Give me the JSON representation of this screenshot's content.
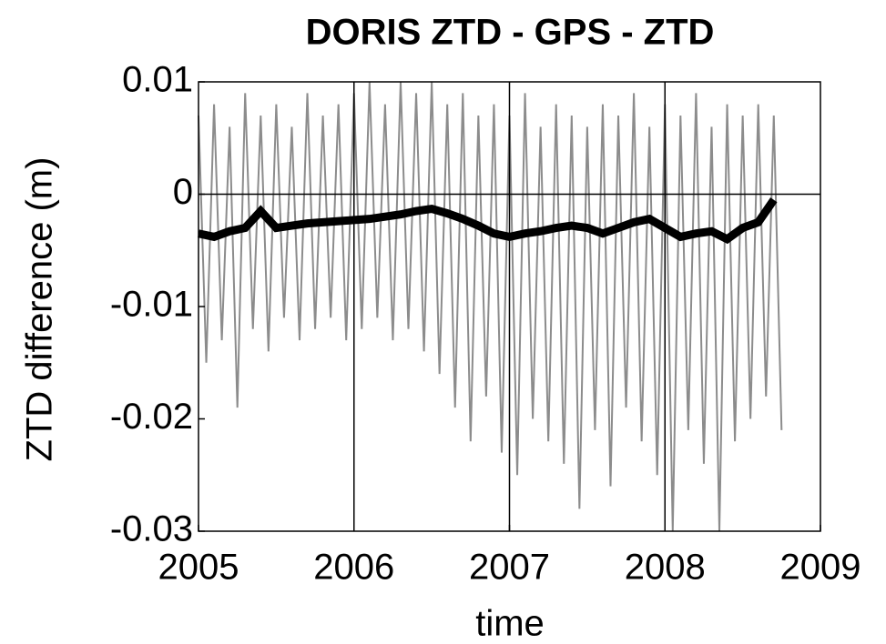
{
  "chart_data": {
    "type": "line",
    "title": "DORIS ZTD - GPS - ZTD",
    "x_label": "time",
    "y_label": "ZTD difference (m)",
    "xlim": [
      2005,
      2009
    ],
    "xticks": [
      2005,
      2006,
      2007,
      2008,
      2009
    ],
    "ylim": [
      -0.03,
      0.01
    ],
    "yticks": [
      0.01,
      0,
      -0.01,
      -0.02,
      -0.03
    ],
    "grid": "x",
    "reference_lines": [
      0
    ],
    "series": [
      {
        "color": "#8c8c8c",
        "line_width": 2,
        "x": [
          2005.0,
          2005.05,
          2005.1,
          2005.15,
          2005.2,
          2005.25,
          2005.3,
          2005.35,
          2005.4,
          2005.45,
          2005.5,
          2005.55,
          2005.6,
          2005.65,
          2005.7,
          2005.75,
          2005.8,
          2005.85,
          2005.9,
          2005.95,
          2006.0,
          2006.05,
          2006.1,
          2006.15,
          2006.2,
          2006.25,
          2006.3,
          2006.35,
          2006.4,
          2006.45,
          2006.5,
          2006.55,
          2006.6,
          2006.65,
          2006.7,
          2006.75,
          2006.8,
          2006.85,
          2006.9,
          2006.95,
          2007.0,
          2007.05,
          2007.1,
          2007.15,
          2007.2,
          2007.25,
          2007.3,
          2007.35,
          2007.4,
          2007.45,
          2007.5,
          2007.55,
          2007.6,
          2007.65,
          2007.7,
          2007.75,
          2007.8,
          2007.85,
          2007.9,
          2007.95,
          2008.0,
          2008.05,
          2008.1,
          2008.15,
          2008.2,
          2008.25,
          2008.3,
          2008.35,
          2008.4,
          2008.45,
          2008.5,
          2008.55,
          2008.6,
          2008.65,
          2008.7,
          2008.75
        ],
        "values": [
          0.007,
          -0.015,
          0.008,
          -0.013,
          0.006,
          -0.019,
          0.009,
          -0.012,
          0.007,
          -0.014,
          0.008,
          -0.011,
          0.006,
          -0.013,
          0.009,
          -0.012,
          0.007,
          -0.011,
          0.008,
          -0.013,
          0.009,
          -0.012,
          0.01,
          -0.011,
          0.008,
          -0.013,
          0.01,
          -0.012,
          0.009,
          -0.014,
          0.01,
          -0.016,
          0.008,
          -0.019,
          0.009,
          -0.022,
          0.007,
          -0.018,
          0.008,
          -0.023,
          0.007,
          -0.025,
          0.009,
          -0.02,
          0.006,
          -0.022,
          0.008,
          -0.024,
          0.007,
          -0.028,
          0.006,
          -0.021,
          0.008,
          -0.026,
          0.007,
          -0.019,
          0.009,
          -0.022,
          0.006,
          -0.025,
          0.008,
          -0.03,
          0.007,
          -0.021,
          0.009,
          -0.024,
          0.006,
          -0.03,
          0.008,
          -0.022,
          0.007,
          -0.02,
          0.008,
          -0.018,
          0.007,
          -0.021
        ]
      },
      {
        "color": "#000000",
        "line_width": 9,
        "x": [
          2005.0,
          2005.1,
          2005.2,
          2005.3,
          2005.4,
          2005.5,
          2005.6,
          2005.7,
          2005.8,
          2005.9,
          2006.0,
          2006.1,
          2006.2,
          2006.3,
          2006.4,
          2006.5,
          2006.6,
          2006.7,
          2006.8,
          2006.9,
          2007.0,
          2007.1,
          2007.2,
          2007.3,
          2007.4,
          2007.5,
          2007.6,
          2007.7,
          2007.8,
          2007.9,
          2008.0,
          2008.1,
          2008.2,
          2008.3,
          2008.4,
          2008.5,
          2008.6,
          2008.7
        ],
        "values": [
          -0.0035,
          -0.0038,
          -0.0033,
          -0.003,
          -0.0015,
          -0.003,
          -0.0028,
          -0.0026,
          -0.0025,
          -0.0024,
          -0.0023,
          -0.0022,
          -0.002,
          -0.0018,
          -0.0015,
          -0.0013,
          -0.0017,
          -0.0022,
          -0.0028,
          -0.0035,
          -0.0038,
          -0.0035,
          -0.0033,
          -0.003,
          -0.0028,
          -0.003,
          -0.0035,
          -0.003,
          -0.0025,
          -0.0022,
          -0.003,
          -0.0038,
          -0.0035,
          -0.0033,
          -0.004,
          -0.003,
          -0.0025,
          -0.0005
        ]
      }
    ]
  }
}
